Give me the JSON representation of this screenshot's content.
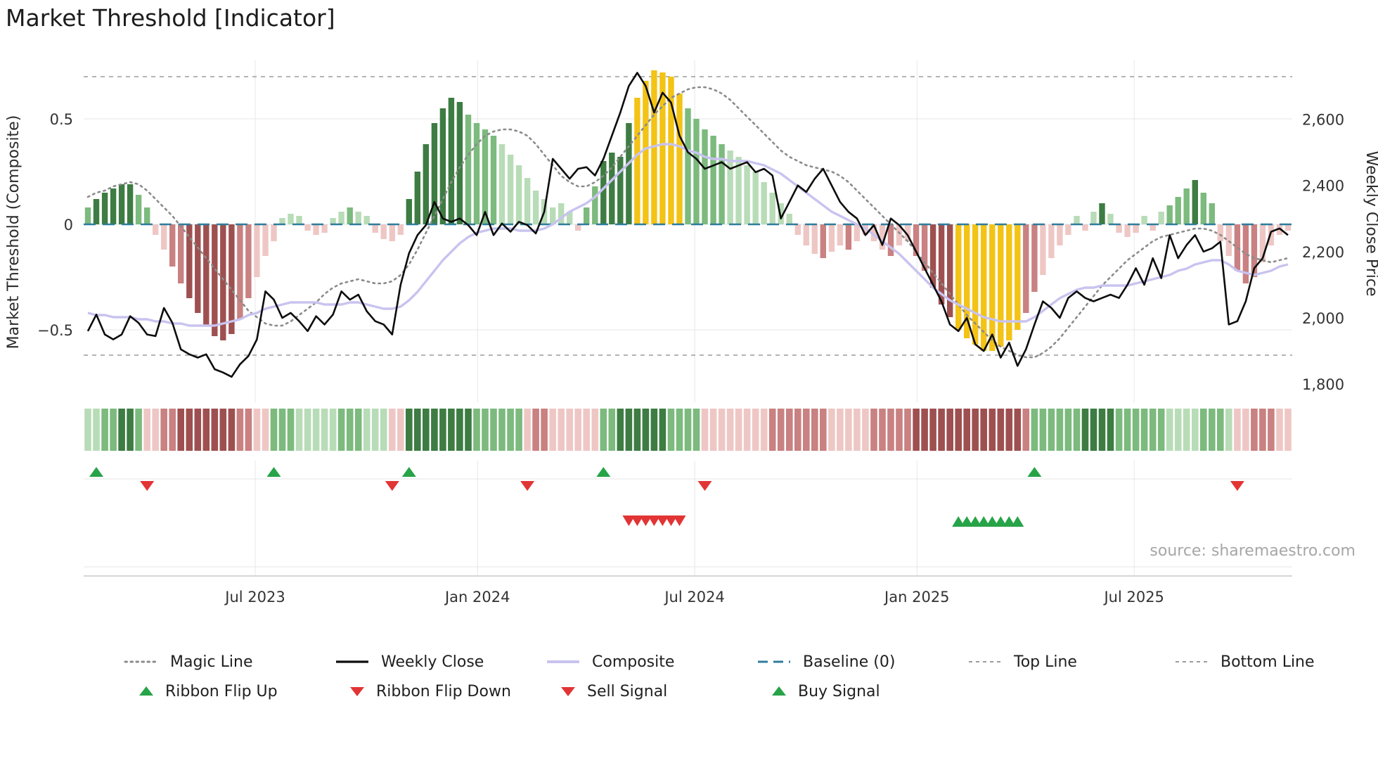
{
  "title": "Market Threshold [Indicator]",
  "source": "source: sharemaestro.com",
  "axes": {
    "left_label": "Market Threshold (Composite)",
    "right_label": "Weekly Close Price",
    "left_ticks": [
      {
        "label": "0.5",
        "value": 0.5
      },
      {
        "label": "0",
        "value": 0
      },
      {
        "label": "−0.5",
        "value": -0.5
      }
    ],
    "right_ticks": [
      {
        "label": "2,600",
        "value": 2600
      },
      {
        "label": "2,400",
        "value": 2400
      },
      {
        "label": "2,200",
        "value": 2200
      },
      {
        "label": "2,000",
        "value": 2000
      },
      {
        "label": "1,800",
        "value": 1800
      }
    ],
    "x_ticks": [
      {
        "label": "Jul 2023",
        "week": 20.3
      },
      {
        "label": "Jan 2024",
        "week": 46.6
      },
      {
        "label": "Jul 2024",
        "week": 72.3
      },
      {
        "label": "Jan 2025",
        "week": 98.6
      },
      {
        "label": "Jul 2025",
        "week": 124.3
      }
    ]
  },
  "colors": {
    "palette": {
      "dg": "#3d7c42",
      "mg": "#7cba7e",
      "lg": "#b8dcb7",
      "lr": "#eec7c5",
      "mr": "#c98181",
      "dr": "#9e5050",
      "y": "#f3c315"
    },
    "weekly_close": "#0d0d0d",
    "composite_line": "#c8c3ef",
    "magic_line": "#8b8b8b",
    "baseline": "#2e7d9c",
    "guide_lines": "#9b9b9b",
    "signal_green": "#27a348",
    "signal_red": "#e23434",
    "grid": "#e7e7e7",
    "spine": "#c9c9c9"
  },
  "legend": {
    "row1": [
      {
        "label": "Magic Line",
        "swatch": "dotted-gray-line"
      },
      {
        "label": "Weekly Close",
        "swatch": "solid-black-line"
      },
      {
        "label": "Composite",
        "swatch": "solid-lavender-line"
      },
      {
        "label": "Baseline (0)",
        "swatch": "dashed-teal-line"
      },
      {
        "label": "Top Line",
        "swatch": "dashed-gray-line"
      },
      {
        "label": "Bottom Line",
        "swatch": "dashed-gray-line"
      }
    ],
    "row2": [
      {
        "label": "Ribbon Flip Up",
        "swatch": "green-up-triangle"
      },
      {
        "label": "Ribbon Flip Down",
        "swatch": "red-down-triangle"
      },
      {
        "label": "Sell Signal",
        "swatch": "red-down-triangle"
      },
      {
        "label": "Buy Signal",
        "swatch": "green-up-triangle"
      }
    ]
  },
  "chart_data": {
    "type": "bar+line",
    "weeks": 143,
    "left_ylim": [
      -0.85,
      0.78
    ],
    "right_ylim": [
      1745,
      2772
    ],
    "baseline": 0,
    "top_line": 0.7,
    "bottom_line": -0.62,
    "threshold_bars": {
      "values": [
        0.08,
        0.12,
        0.15,
        0.17,
        0.19,
        0.19,
        0.14,
        0.08,
        -0.05,
        -0.12,
        -0.2,
        -0.28,
        -0.35,
        -0.42,
        -0.48,
        -0.53,
        -0.55,
        -0.52,
        -0.45,
        -0.35,
        -0.25,
        -0.15,
        -0.08,
        0.03,
        0.05,
        0.04,
        -0.03,
        -0.05,
        -0.04,
        0.03,
        0.06,
        0.08,
        0.06,
        0.04,
        -0.04,
        -0.07,
        -0.08,
        -0.05,
        0.12,
        0.25,
        0.38,
        0.48,
        0.55,
        0.6,
        0.58,
        0.52,
        0.48,
        0.45,
        0.42,
        0.38,
        0.33,
        0.28,
        0.22,
        0.16,
        0.12,
        0.08,
        0.1,
        0.06,
        -0.03,
        0.08,
        0.18,
        0.3,
        0.34,
        0.32,
        0.48,
        0.6,
        0.68,
        0.73,
        0.72,
        0.7,
        0.62,
        0.55,
        0.5,
        0.45,
        0.42,
        0.38,
        0.35,
        0.32,
        0.28,
        0.25,
        0.2,
        0.15,
        0.1,
        0.05,
        -0.05,
        -0.1,
        -0.14,
        -0.16,
        -0.13,
        -0.1,
        -0.12,
        -0.08,
        -0.05,
        -0.08,
        -0.12,
        -0.15,
        -0.1,
        -0.08,
        -0.15,
        -0.22,
        -0.3,
        -0.38,
        -0.44,
        -0.5,
        -0.54,
        -0.57,
        -0.6,
        -0.6,
        -0.58,
        -0.55,
        -0.5,
        -0.42,
        -0.32,
        -0.24,
        -0.16,
        -0.1,
        -0.05,
        0.04,
        -0.03,
        0.06,
        0.1,
        0.05,
        -0.04,
        -0.06,
        -0.04,
        0.04,
        -0.03,
        0.06,
        0.09,
        0.13,
        0.17,
        0.21,
        0.15,
        0.1,
        -0.08,
        -0.15,
        -0.22,
        -0.28,
        -0.25,
        -0.18,
        -0.1,
        -0.05,
        -0.03
      ],
      "colors": [
        "mg",
        "dg",
        "dg",
        "dg",
        "dg",
        "dg",
        "mg",
        "mg",
        "lr",
        "lr",
        "mr",
        "mr",
        "dr",
        "dr",
        "dr",
        "dr",
        "dr",
        "dr",
        "mr",
        "mr",
        "lr",
        "lr",
        "lr",
        "lg",
        "lg",
        "lg",
        "lr",
        "lr",
        "lr",
        "lg",
        "lg",
        "mg",
        "lg",
        "lg",
        "lr",
        "lr",
        "lr",
        "lr",
        "dg",
        "dg",
        "dg",
        "dg",
        "dg",
        "dg",
        "dg",
        "mg",
        "mg",
        "mg",
        "mg",
        "lg",
        "lg",
        "lg",
        "lg",
        "lg",
        "lg",
        "lg",
        "lg",
        "lg",
        "lr",
        "mg",
        "mg",
        "dg",
        "dg",
        "dg",
        "dg",
        "y",
        "y",
        "y",
        "y",
        "y",
        "y",
        "mg",
        "mg",
        "mg",
        "mg",
        "mg",
        "lg",
        "lg",
        "lg",
        "lg",
        "lg",
        "lg",
        "lg",
        "lg",
        "lr",
        "lr",
        "lr",
        "mr",
        "lr",
        "lr",
        "mr",
        "lr",
        "lr",
        "lr",
        "lr",
        "mr",
        "lr",
        "lr",
        "mr",
        "mr",
        "dr",
        "dr",
        "dr",
        "y",
        "y",
        "y",
        "y",
        "y",
        "y",
        "y",
        "y",
        "mr",
        "mr",
        "lr",
        "lr",
        "lr",
        "lr",
        "lg",
        "lr",
        "lg",
        "dg",
        "lg",
        "lr",
        "lr",
        "lr",
        "lg",
        "lr",
        "lg",
        "mg",
        "mg",
        "mg",
        "dg",
        "mg",
        "mg",
        "lr",
        "lr",
        "mr",
        "mr",
        "mr",
        "lr",
        "lr",
        "lr",
        "lr"
      ]
    },
    "weekly_close": [
      1960,
      2010,
      1950,
      1935,
      1950,
      2005,
      1985,
      1950,
      1945,
      2030,
      1985,
      1905,
      1890,
      1880,
      1890,
      1845,
      1835,
      1822,
      1860,
      1885,
      1935,
      2080,
      2055,
      2000,
      2015,
      1990,
      1960,
      2005,
      1980,
      2010,
      2080,
      2055,
      2070,
      2020,
      1990,
      1980,
      1950,
      2100,
      2195,
      2250,
      2280,
      2350,
      2300,
      2290,
      2300,
      2280,
      2250,
      2320,
      2250,
      2285,
      2260,
      2290,
      2280,
      2255,
      2320,
      2480,
      2450,
      2420,
      2450,
      2455,
      2430,
      2480,
      2550,
      2620,
      2700,
      2740,
      2700,
      2620,
      2680,
      2650,
      2550,
      2500,
      2480,
      2450,
      2460,
      2470,
      2450,
      2460,
      2470,
      2440,
      2450,
      2430,
      2300,
      2350,
      2400,
      2380,
      2420,
      2450,
      2400,
      2350,
      2320,
      2300,
      2250,
      2280,
      2220,
      2300,
      2280,
      2250,
      2200,
      2150,
      2100,
      2050,
      1980,
      1960,
      2000,
      1920,
      1900,
      1950,
      1880,
      1925,
      1855,
      1905,
      1980,
      2050,
      2030,
      2000,
      2060,
      2080,
      2060,
      2050,
      2060,
      2070,
      2060,
      2100,
      2150,
      2100,
      2180,
      2120,
      2250,
      2180,
      2220,
      2250,
      2200,
      2210,
      2230,
      1980,
      1990,
      2050,
      2150,
      2180,
      2260,
      2270,
      2250
    ],
    "composite_line": [
      -0.42,
      -0.43,
      -0.43,
      -0.44,
      -0.44,
      -0.44,
      -0.45,
      -0.45,
      -0.46,
      -0.46,
      -0.47,
      -0.47,
      -0.48,
      -0.48,
      -0.48,
      -0.48,
      -0.47,
      -0.46,
      -0.45,
      -0.43,
      -0.42,
      -0.4,
      -0.39,
      -0.38,
      -0.37,
      -0.37,
      -0.37,
      -0.37,
      -0.38,
      -0.38,
      -0.38,
      -0.37,
      -0.37,
      -0.38,
      -0.39,
      -0.4,
      -0.4,
      -0.39,
      -0.36,
      -0.32,
      -0.27,
      -0.22,
      -0.17,
      -0.13,
      -0.09,
      -0.06,
      -0.04,
      -0.03,
      -0.02,
      -0.02,
      -0.02,
      -0.03,
      -0.03,
      -0.03,
      -0.02,
      0.0,
      0.03,
      0.06,
      0.08,
      0.1,
      0.13,
      0.17,
      0.21,
      0.25,
      0.29,
      0.33,
      0.36,
      0.37,
      0.38,
      0.38,
      0.37,
      0.35,
      0.34,
      0.32,
      0.31,
      0.31,
      0.3,
      0.3,
      0.3,
      0.29,
      0.28,
      0.26,
      0.24,
      0.21,
      0.18,
      0.15,
      0.12,
      0.09,
      0.06,
      0.04,
      0.02,
      0.0,
      -0.02,
      -0.05,
      -0.08,
      -0.11,
      -0.14,
      -0.18,
      -0.22,
      -0.26,
      -0.3,
      -0.33,
      -0.36,
      -0.38,
      -0.4,
      -0.42,
      -0.44,
      -0.45,
      -0.46,
      -0.46,
      -0.46,
      -0.46,
      -0.44,
      -0.41,
      -0.38,
      -0.35,
      -0.33,
      -0.31,
      -0.3,
      -0.3,
      -0.29,
      -0.29,
      -0.29,
      -0.29,
      -0.28,
      -0.27,
      -0.26,
      -0.25,
      -0.24,
      -0.22,
      -0.21,
      -0.19,
      -0.18,
      -0.17,
      -0.17,
      -0.19,
      -0.22,
      -0.23,
      -0.24,
      -0.23,
      -0.22,
      -0.2,
      -0.19
    ],
    "magic_line": [
      0.13,
      0.15,
      0.16,
      0.18,
      0.19,
      0.2,
      0.19,
      0.16,
      0.12,
      0.08,
      0.04,
      -0.01,
      -0.06,
      -0.11,
      -0.16,
      -0.21,
      -0.26,
      -0.31,
      -0.36,
      -0.41,
      -0.44,
      -0.47,
      -0.48,
      -0.48,
      -0.46,
      -0.43,
      -0.4,
      -0.37,
      -0.33,
      -0.3,
      -0.28,
      -0.27,
      -0.26,
      -0.27,
      -0.28,
      -0.28,
      -0.27,
      -0.24,
      -0.19,
      -0.12,
      -0.04,
      0.04,
      0.12,
      0.2,
      0.27,
      0.33,
      0.38,
      0.42,
      0.44,
      0.45,
      0.45,
      0.44,
      0.42,
      0.38,
      0.33,
      0.28,
      0.23,
      0.2,
      0.18,
      0.18,
      0.2,
      0.23,
      0.27,
      0.32,
      0.37,
      0.42,
      0.47,
      0.52,
      0.56,
      0.6,
      0.62,
      0.64,
      0.65,
      0.65,
      0.64,
      0.62,
      0.59,
      0.55,
      0.51,
      0.47,
      0.43,
      0.39,
      0.35,
      0.32,
      0.3,
      0.28,
      0.27,
      0.26,
      0.25,
      0.23,
      0.2,
      0.16,
      0.12,
      0.08,
      0.04,
      0.0,
      -0.04,
      -0.08,
      -0.13,
      -0.18,
      -0.23,
      -0.28,
      -0.33,
      -0.38,
      -0.43,
      -0.47,
      -0.51,
      -0.55,
      -0.58,
      -0.6,
      -0.62,
      -0.63,
      -0.63,
      -0.61,
      -0.58,
      -0.54,
      -0.49,
      -0.44,
      -0.39,
      -0.34,
      -0.29,
      -0.25,
      -0.21,
      -0.17,
      -0.14,
      -0.11,
      -0.08,
      -0.06,
      -0.05,
      -0.04,
      -0.03,
      -0.02,
      -0.02,
      -0.03,
      -0.05,
      -0.08,
      -0.11,
      -0.14,
      -0.16,
      -0.17,
      -0.18,
      -0.17,
      -0.16
    ],
    "ribbon": [
      "lg",
      "lg",
      "mg",
      "mg",
      "dg",
      "dg",
      "mg",
      "lr",
      "lr",
      "mr",
      "mr",
      "dr",
      "dr",
      "dr",
      "dr",
      "dr",
      "dr",
      "dr",
      "mr",
      "mr",
      "lr",
      "lr",
      "mg",
      "mg",
      "mg",
      "lg",
      "lg",
      "lg",
      "lg",
      "lg",
      "mg",
      "mg",
      "mg",
      "lg",
      "lg",
      "lg",
      "lr",
      "lr",
      "dg",
      "dg",
      "dg",
      "dg",
      "dg",
      "dg",
      "dg",
      "dg",
      "mg",
      "mg",
      "mg",
      "mg",
      "mg",
      "mg",
      "lr",
      "mr",
      "mr",
      "lr",
      "lr",
      "lr",
      "lr",
      "lr",
      "lr",
      "mg",
      "mg",
      "dg",
      "dg",
      "dg",
      "dg",
      "dg",
      "dg",
      "mg",
      "mg",
      "mg",
      "mg",
      "lr",
      "lr",
      "lr",
      "lr",
      "lr",
      "lr",
      "lr",
      "lr",
      "mr",
      "mr",
      "mr",
      "mr",
      "mr",
      "mr",
      "mr",
      "lr",
      "lr",
      "lr",
      "lr",
      "lr",
      "mr",
      "mr",
      "mr",
      "mr",
      "mr",
      "dr",
      "dr",
      "dr",
      "dr",
      "dr",
      "dr",
      "dr",
      "dr",
      "dr",
      "dr",
      "dr",
      "dr",
      "dr",
      "mr",
      "mg",
      "mg",
      "mg",
      "mg",
      "mg",
      "mg",
      "dg",
      "dg",
      "dg",
      "dg",
      "mg",
      "mg",
      "mg",
      "mg",
      "mg",
      "mg",
      "lg",
      "lg",
      "lg",
      "lg",
      "mg",
      "mg",
      "mg",
      "lg",
      "lr",
      "lr",
      "mr",
      "mr",
      "mr",
      "lr",
      "lr"
    ],
    "signals": {
      "ribbon_flip_up": [
        1,
        22,
        38,
        61,
        112
      ],
      "ribbon_flip_down": [
        7,
        36,
        52,
        73,
        136
      ],
      "sell": [
        64,
        65,
        66,
        67,
        68,
        69,
        70
      ],
      "buy": [
        103,
        104,
        105,
        106,
        107,
        108,
        109,
        110
      ]
    }
  }
}
